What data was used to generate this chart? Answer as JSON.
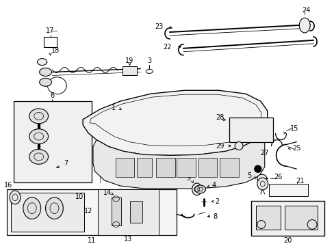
{
  "bg_color": "#ffffff",
  "fig_width": 4.89,
  "fig_height": 3.6,
  "dpi": 100,
  "line_color": "#000000",
  "text_color": "#000000",
  "font_size": 7.0
}
